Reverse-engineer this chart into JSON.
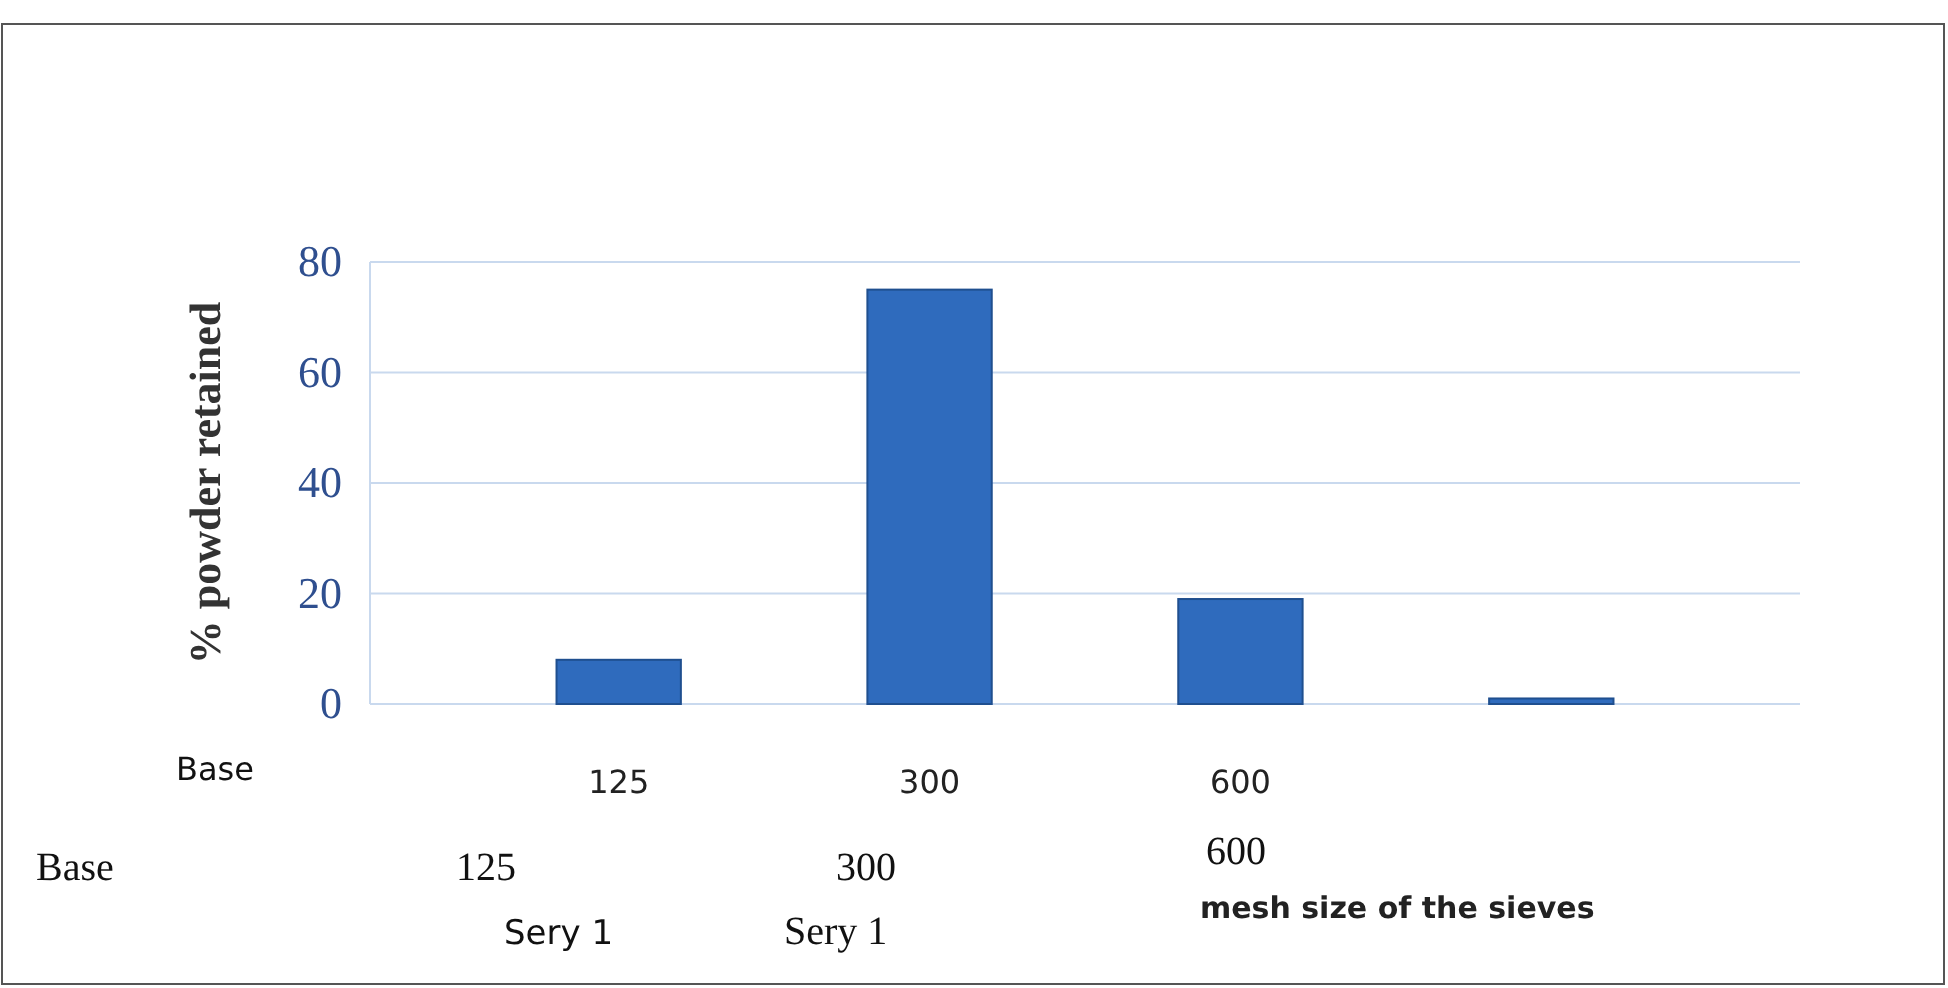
{
  "chart_data": {
    "type": "bar",
    "ylabel": "% powder retained",
    "xlabel": "mesh size of the sieves",
    "categories": [
      "125",
      "300",
      "600",
      null
    ],
    "values": [
      8,
      75,
      19,
      1
    ],
    "color": "#2f6bbd",
    "ylim": [
      0,
      80
    ],
    "yticks": [
      0,
      20,
      40,
      60,
      80
    ],
    "grid": "y",
    "annotations": [
      "Base",
      "Base",
      "125",
      "300",
      "600",
      "Sery 1",
      "Sery 1"
    ]
  }
}
